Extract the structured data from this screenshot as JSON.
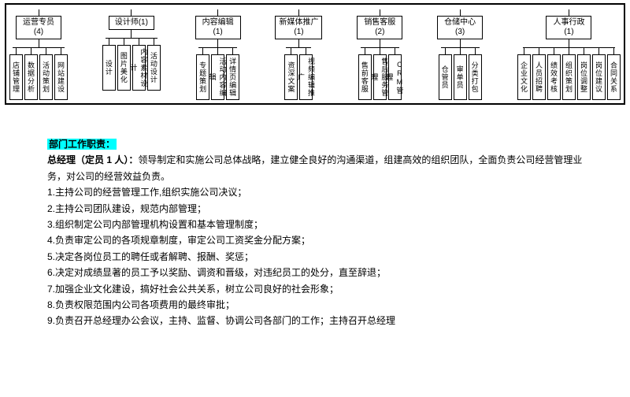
{
  "chart": {
    "border_color": "#000000",
    "box_border": "#000000",
    "background": "#ffffff",
    "font_size_dept": 10,
    "font_size_child": 9,
    "departments": [
      {
        "label": "运营专员\n(4)",
        "children": [
          "店铺管理",
          "数据分析",
          "活动策划",
          "网站建设"
        ]
      },
      {
        "label": "设计师(1)",
        "children": [
          "设计",
          "图片美化",
          "内容素材设计",
          "活动设计"
        ]
      },
      {
        "label": "内容编辑\n(1)",
        "children": [
          "专题策划",
          "活动内容编辑",
          "详情页编辑"
        ]
      },
      {
        "label": "新媒体推广\n(1)",
        "children": [
          "资深文案",
          "视频编辑推广"
        ]
      },
      {
        "label": "销售客服\n(2)",
        "children": [
          "售前客服",
          "售后服务管理",
          "CRM管理"
        ]
      },
      {
        "label": "仓储中心\n(3)",
        "children": [
          "仓管员",
          "审单员",
          "分类打包"
        ]
      },
      {
        "label": "人事行政\n(1)",
        "children": [
          "企业文化",
          "人员招聘",
          "绩效考核",
          "组织策划",
          "岗位调整",
          "岗位建议",
          "合同关系"
        ]
      }
    ]
  },
  "text": {
    "heading": "部门工作职责：",
    "lead": "总经理（定员 1 人）：",
    "lead_tail": "领导制定和实施公司总体战略，建立健全良好的沟通渠道，组建高效的组织团队，全面负责公司经营管理业务，对公司的经营效益负责。",
    "items": [
      "1.主持公司的经营管理工作,组织实施公司决议；",
      "2.主持公司团队建设，规范内部管理；",
      "3.组织制定公司内部管理机构设置和基本管理制度；",
      "4.负责审定公司的各项规章制度，审定公司工资奖金分配方案；",
      "5.决定各岗位员工的聘任或者解聘、报酬、奖惩；",
      "6.决定对成绩显著的员工予以奖励、调资和晋级，对违纪员工的处分，直至辞退；",
      "7.加强企业文化建设，搞好社会公共关系，树立公司良好的社会形象；",
      "8.负责权限范围内公司各项费用的最终审批；",
      "9.负责召开总经理办公会议，主持、监督、协调公司各部门的工作；主持召开总经理"
    ],
    "highlight_bg": "#00ffff"
  }
}
